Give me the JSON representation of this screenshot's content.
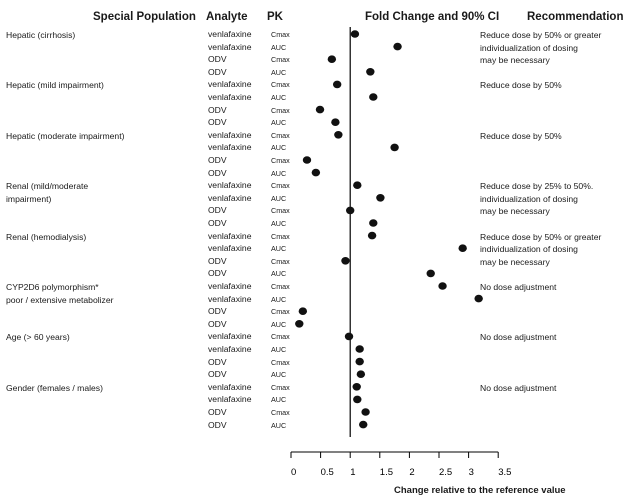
{
  "headers": {
    "population": "Special Population",
    "analyte": "Analyte",
    "pk": "PK",
    "fold_change": "Fold Change and 90% CI",
    "recommendation": "Recommendation"
  },
  "chart_data": {
    "type": "scatter",
    "title": "Fold Change and 90% CI",
    "xlabel": "Change relative to the reference value",
    "xlim": [
      0,
      3.5
    ],
    "xticks": [
      "0",
      "0.5",
      "1",
      "1.5",
      "2",
      "2.5",
      "3",
      "3.5"
    ],
    "xtick_values": [
      0,
      0.5,
      1,
      1.5,
      2,
      2.5,
      3,
      3.5
    ],
    "reference_line": 1,
    "grid": false,
    "groups": [
      {
        "population": [
          "Hepatic (cirrhosis)"
        ],
        "recommendation": [
          "Reduce dose by 50% or greater",
          "individualization of dosing",
          "may be necessary"
        ],
        "rows": [
          {
            "analyte": "venlafaxine",
            "pk": "Cmax",
            "value": 1.08
          },
          {
            "analyte": "venlafaxine",
            "pk": "AUC",
            "value": 1.8
          },
          {
            "analyte": "ODV",
            "pk": "Cmax",
            "value": 0.69
          },
          {
            "analyte": "ODV",
            "pk": "AUC",
            "value": 1.34
          }
        ]
      },
      {
        "population": [
          "Hepatic (mild impairment)"
        ],
        "recommendation": [
          "Reduce dose by 50%"
        ],
        "rows": [
          {
            "analyte": "venlafaxine",
            "pk": "Cmax",
            "value": 0.78
          },
          {
            "analyte": "venlafaxine",
            "pk": "AUC",
            "value": 1.39
          },
          {
            "analyte": "ODV",
            "pk": "Cmax",
            "value": 0.49
          },
          {
            "analyte": "ODV",
            "pk": "AUC",
            "value": 0.75
          }
        ]
      },
      {
        "population": [
          "Hepatic (moderate impairment)"
        ],
        "recommendation": [
          "Reduce dose by 50%"
        ],
        "rows": [
          {
            "analyte": "venlafaxine",
            "pk": "Cmax",
            "value": 0.8
          },
          {
            "analyte": "venlafaxine",
            "pk": "AUC",
            "value": 1.75
          },
          {
            "analyte": "ODV",
            "pk": "Cmax",
            "value": 0.27
          },
          {
            "analyte": "ODV",
            "pk": "AUC",
            "value": 0.42
          }
        ]
      },
      {
        "population": [
          "Renal (mild/moderate",
          "impairment)"
        ],
        "recommendation": [
          "Reduce dose by 25% to 50%.",
          "individualization of dosing",
          "may be necessary"
        ],
        "rows": [
          {
            "analyte": "venlafaxine",
            "pk": "Cmax",
            "value": 1.12
          },
          {
            "analyte": "venlafaxine",
            "pk": "AUC",
            "value": 1.51
          },
          {
            "analyte": "ODV",
            "pk": "Cmax",
            "value": 1.0
          },
          {
            "analyte": "ODV",
            "pk": "AUC",
            "value": 1.39
          }
        ]
      },
      {
        "population": [
          "Renal (hemodialysis)"
        ],
        "recommendation": [
          "Reduce dose by 50% or greater",
          "individualization of dosing",
          "may be necessary"
        ],
        "rows": [
          {
            "analyte": "venlafaxine",
            "pk": "Cmax",
            "value": 1.37
          },
          {
            "analyte": "venlafaxine",
            "pk": "AUC",
            "value": 2.9
          },
          {
            "analyte": "ODV",
            "pk": "Cmax",
            "value": 0.92
          },
          {
            "analyte": "ODV",
            "pk": "AUC",
            "value": 2.36
          }
        ]
      },
      {
        "population": [
          "CYP2D6 polymorphism*",
          "poor / extensive metabolizer"
        ],
        "recommendation": [
          "No dose adjustment"
        ],
        "rows": [
          {
            "analyte": "venlafaxine",
            "pk": "Cmax",
            "value": 2.56
          },
          {
            "analyte": "venlafaxine",
            "pk": "AUC",
            "value": 3.17
          },
          {
            "analyte": "ODV",
            "pk": "Cmax",
            "value": 0.2
          },
          {
            "analyte": "ODV",
            "pk": "AUC",
            "value": 0.14
          }
        ]
      },
      {
        "population": [
          "Age (> 60 years)"
        ],
        "recommendation": [
          "No dose adjustment"
        ],
        "rows": [
          {
            "analyte": "venlafaxine",
            "pk": "Cmax",
            "value": 0.98
          },
          {
            "analyte": "venlafaxine",
            "pk": "AUC",
            "value": 1.16
          },
          {
            "analyte": "ODV",
            "pk": "Cmax",
            "value": 1.16
          },
          {
            "analyte": "ODV",
            "pk": "AUC",
            "value": 1.18
          }
        ]
      },
      {
        "population": [
          "Gender (females / males)"
        ],
        "recommendation": [
          "No dose adjustment"
        ],
        "rows": [
          {
            "analyte": "venlafaxine",
            "pk": "Cmax",
            "value": 1.11
          },
          {
            "analyte": "venlafaxine",
            "pk": "AUC",
            "value": 1.12
          },
          {
            "analyte": "ODV",
            "pk": "Cmax",
            "value": 1.26
          },
          {
            "analyte": "ODV",
            "pk": "AUC",
            "value": 1.22
          }
        ]
      }
    ]
  }
}
